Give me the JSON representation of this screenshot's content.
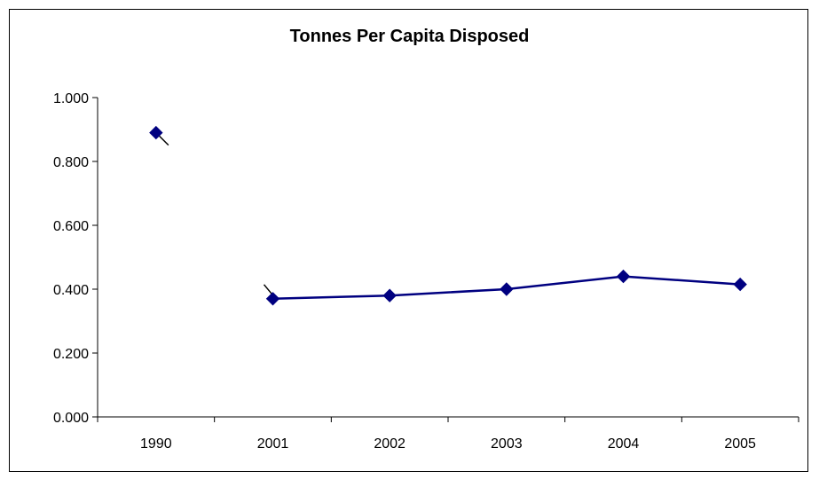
{
  "chart_data": {
    "type": "line",
    "title": "Tonnes Per Capita Disposed",
    "xlabel": "",
    "ylabel": "",
    "categories": [
      "1990",
      "2001",
      "2002",
      "2003",
      "2004",
      "2005"
    ],
    "series": [
      {
        "values": [
          0.89,
          0.37,
          0.38,
          0.4,
          0.44,
          0.415
        ],
        "color": "#000080"
      }
    ],
    "gap_after_category": "1990",
    "ylim": [
      0,
      1.0
    ],
    "y_ticks": [
      "0.000",
      "0.200",
      "0.400",
      "0.600",
      "0.800",
      "1.000"
    ],
    "grid": false,
    "legend": "none"
  }
}
